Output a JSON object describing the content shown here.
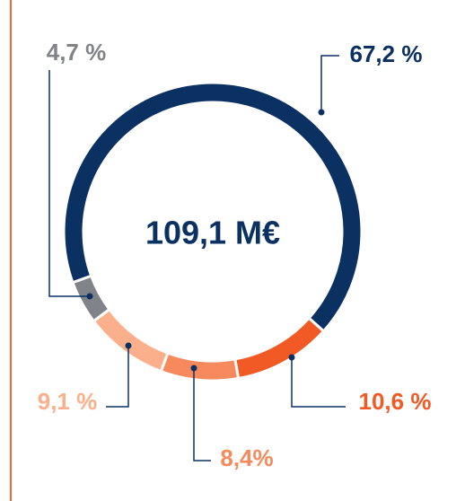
{
  "chart_data": {
    "type": "donut",
    "center_label": "109,1 M€",
    "values": [
      67.2,
      10.6,
      8.4,
      9.1,
      4.7
    ],
    "value_labels": [
      "67,2 %",
      "10,6 %",
      "8,4%",
      "9,1 %",
      "4,7 %"
    ],
    "colors": [
      "#0b3163",
      "#f15a24",
      "#f68a5c",
      "#fbb08b",
      "#808387"
    ]
  }
}
